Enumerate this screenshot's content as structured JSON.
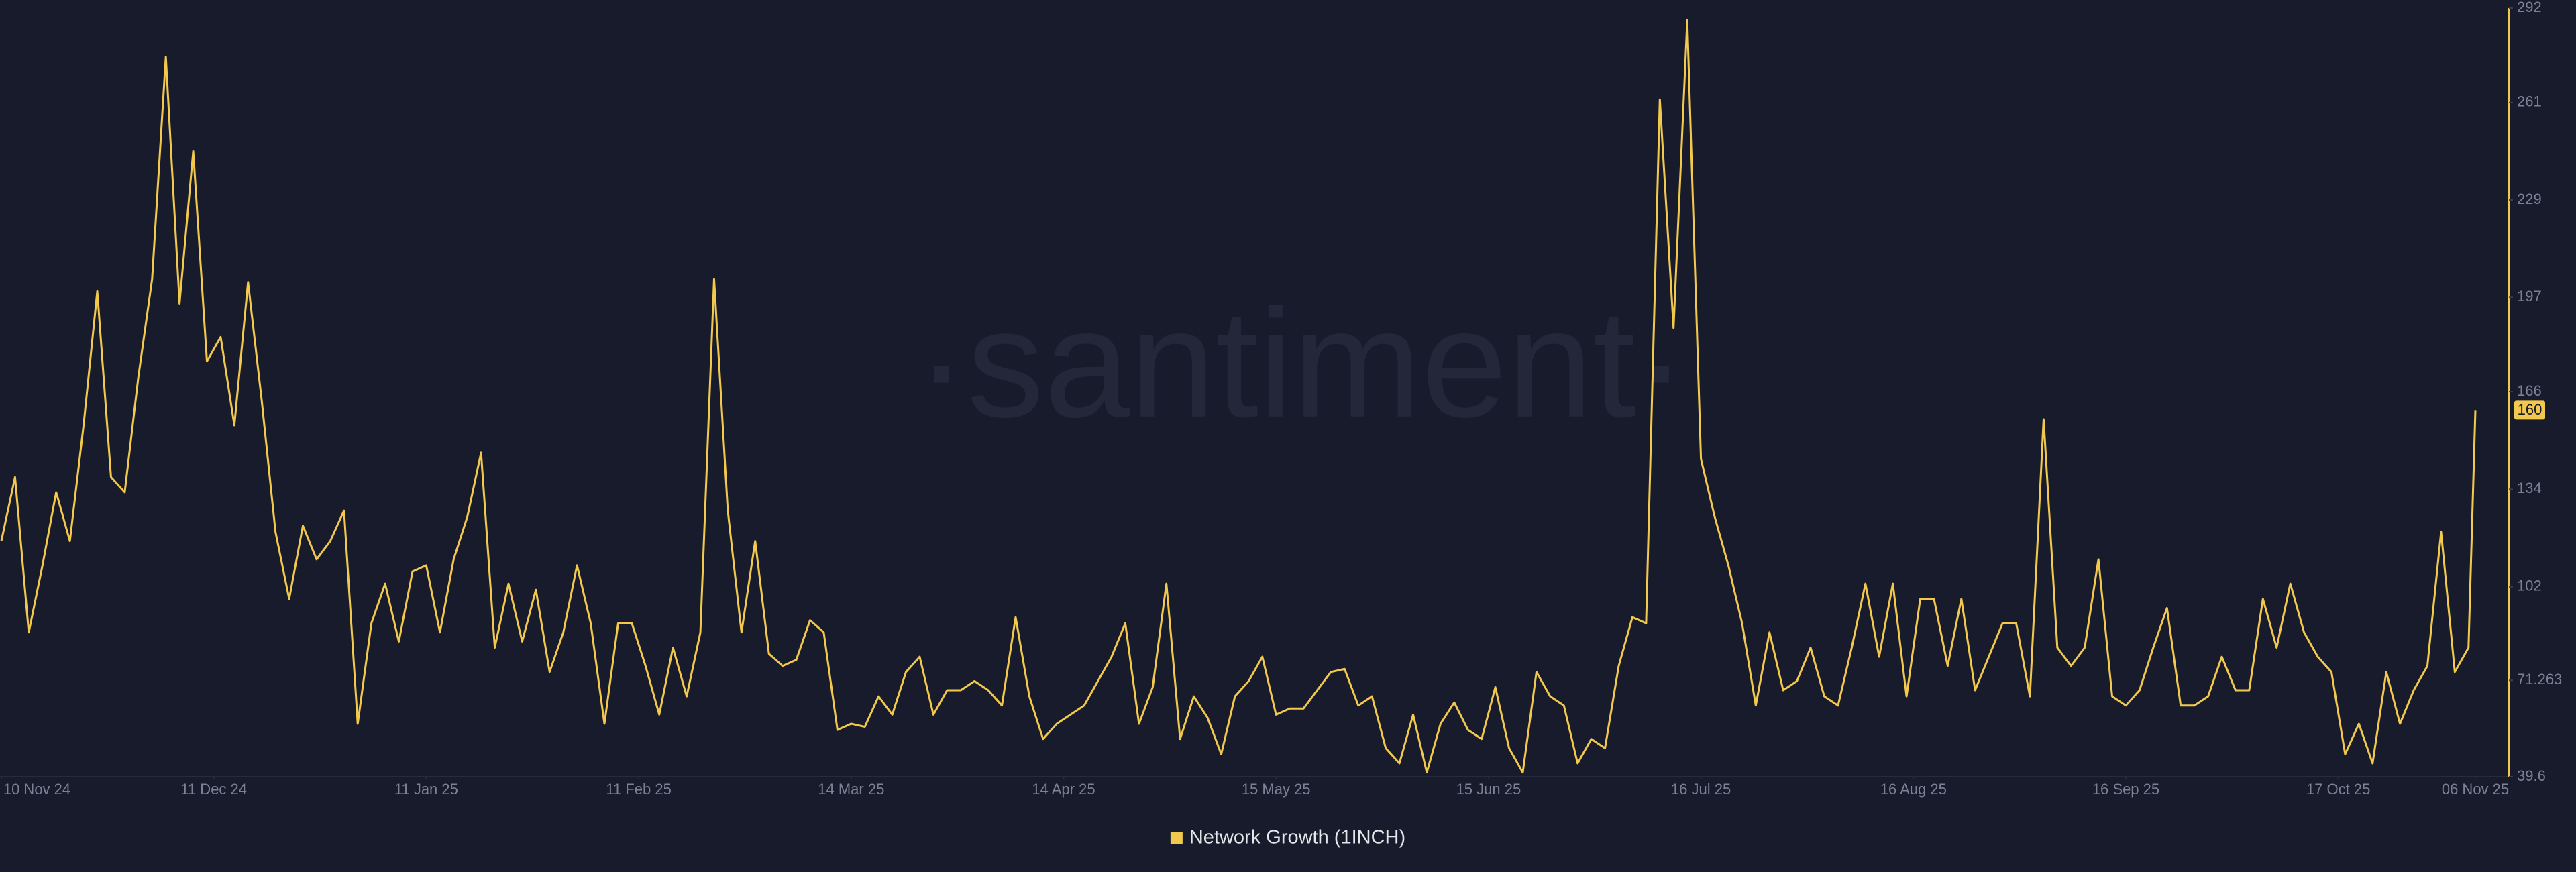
{
  "chart_data": {
    "type": "line",
    "watermark": "·santiment·",
    "x": [
      "10 Nov 24",
      "12 Nov 24",
      "14 Nov 24",
      "16 Nov 24",
      "18 Nov 24",
      "20 Nov 24",
      "22 Nov 24",
      "24 Nov 24",
      "26 Nov 24",
      "28 Nov 24",
      "30 Nov 24",
      "02 Dec 24",
      "04 Dec 24",
      "06 Dec 24",
      "08 Dec 24",
      "10 Dec 24",
      "12 Dec 24",
      "14 Dec 24",
      "16 Dec 24",
      "18 Dec 24",
      "20 Dec 24",
      "22 Dec 24",
      "24 Dec 24",
      "26 Dec 24",
      "28 Dec 24",
      "30 Dec 24",
      "01 Jan 25",
      "03 Jan 25",
      "05 Jan 25",
      "07 Jan 25",
      "09 Jan 25",
      "11 Jan 25",
      "13 Jan 25",
      "15 Jan 25",
      "17 Jan 25",
      "19 Jan 25",
      "21 Jan 25",
      "23 Jan 25",
      "25 Jan 25",
      "27 Jan 25",
      "29 Jan 25",
      "31 Jan 25",
      "02 Feb 25",
      "04 Feb 25",
      "06 Feb 25",
      "08 Feb 25",
      "10 Feb 25",
      "12 Feb 25",
      "14 Feb 25",
      "16 Feb 25",
      "18 Feb 25",
      "20 Feb 25",
      "22 Feb 25",
      "24 Feb 25",
      "26 Feb 25",
      "28 Feb 25",
      "02 Mar 25",
      "04 Mar 25",
      "06 Mar 25",
      "08 Mar 25",
      "10 Mar 25",
      "12 Mar 25",
      "14 Mar 25",
      "16 Mar 25",
      "18 Mar 25",
      "20 Mar 25",
      "22 Mar 25",
      "24 Mar 25",
      "26 Mar 25",
      "28 Mar 25",
      "30 Mar 25",
      "01 Apr 25",
      "03 Apr 25",
      "05 Apr 25",
      "07 Apr 25",
      "09 Apr 25",
      "11 Apr 25",
      "13 Apr 25",
      "15 Apr 25",
      "17 Apr 25",
      "19 Apr 25",
      "21 Apr 25",
      "23 Apr 25",
      "25 Apr 25",
      "27 Apr 25",
      "29 Apr 25",
      "01 May 25",
      "03 May 25",
      "05 May 25",
      "07 May 25",
      "09 May 25",
      "11 May 25",
      "13 May 25",
      "15 May 25",
      "17 May 25",
      "19 May 25",
      "21 May 25",
      "23 May 25",
      "25 May 25",
      "27 May 25",
      "29 May 25",
      "31 May 25",
      "02 Jun 25",
      "04 Jun 25",
      "06 Jun 25",
      "08 Jun 25",
      "10 Jun 25",
      "12 Jun 25",
      "14 Jun 25",
      "16 Jun 25",
      "18 Jun 25",
      "20 Jun 25",
      "22 Jun 25",
      "24 Jun 25",
      "26 Jun 25",
      "28 Jun 25",
      "30 Jun 25",
      "02 Jul 25",
      "04 Jul 25",
      "06 Jul 25",
      "08 Jul 25",
      "10 Jul 25",
      "12 Jul 25",
      "14 Jul 25",
      "16 Jul 25",
      "18 Jul 25",
      "20 Jul 25",
      "22 Jul 25",
      "24 Jul 25",
      "26 Jul 25",
      "28 Jul 25",
      "30 Jul 25",
      "01 Aug 25",
      "03 Aug 25",
      "05 Aug 25",
      "07 Aug 25",
      "09 Aug 25",
      "11 Aug 25",
      "13 Aug 25",
      "15 Aug 25",
      "17 Aug 25",
      "19 Aug 25",
      "21 Aug 25",
      "23 Aug 25",
      "25 Aug 25",
      "27 Aug 25",
      "29 Aug 25",
      "31 Aug 25",
      "02 Sep 25",
      "04 Sep 25",
      "06 Sep 25",
      "08 Sep 25",
      "10 Sep 25",
      "12 Sep 25",
      "14 Sep 25",
      "16 Sep 25",
      "18 Sep 25",
      "20 Sep 25",
      "22 Sep 25",
      "24 Sep 25",
      "26 Sep 25",
      "28 Sep 25",
      "30 Sep 25",
      "02 Oct 25",
      "04 Oct 25",
      "06 Oct 25",
      "08 Oct 25",
      "10 Oct 25",
      "12 Oct 25",
      "14 Oct 25",
      "16 Oct 25",
      "18 Oct 25",
      "20 Oct 25",
      "22 Oct 25",
      "24 Oct 25",
      "26 Oct 25",
      "28 Oct 25",
      "30 Oct 25",
      "01 Nov 25",
      "03 Nov 25",
      "05 Nov 25",
      "06 Nov 25"
    ],
    "series": [
      {
        "name": "Network Growth (1INCH)",
        "color": "#f2c94c",
        "values": [
          117,
          138,
          87,
          109,
          133,
          117,
          155,
          199,
          138,
          133,
          171,
          203,
          276,
          195,
          245,
          176,
          184,
          155,
          202,
          163,
          120,
          98,
          122,
          111,
          117,
          127,
          57,
          90,
          103,
          84,
          107,
          109,
          87,
          111,
          125,
          146,
          82,
          103,
          84,
          101,
          74,
          87,
          109,
          90,
          57,
          90,
          90,
          76,
          60,
          82,
          66,
          87,
          203,
          127,
          87,
          117,
          80,
          76,
          78,
          91,
          87,
          55,
          57,
          56,
          66,
          60,
          74,
          79,
          60,
          68,
          68,
          71,
          68,
          63,
          92,
          66,
          52,
          57,
          60,
          63,
          71,
          79,
          90,
          57,
          69,
          103,
          52,
          66,
          59,
          47,
          66,
          71,
          79,
          60,
          62,
          62,
          68,
          74,
          75,
          63,
          66,
          49,
          44,
          60,
          41,
          57,
          64,
          55,
          52,
          69,
          49,
          41,
          74,
          66,
          63,
          44,
          52,
          49,
          76,
          92,
          90,
          262,
          187,
          288,
          144,
          125,
          109,
          90,
          63,
          87,
          68,
          71,
          82,
          66,
          63,
          82,
          103,
          79,
          103,
          66,
          98,
          98,
          76,
          98,
          68,
          79,
          90,
          90,
          66,
          157,
          82,
          76,
          82,
          111,
          66,
          63,
          68,
          82,
          95,
          63,
          63,
          66,
          79,
          68,
          68,
          98,
          82,
          103,
          87,
          79,
          74,
          47,
          57,
          44,
          74,
          57,
          68,
          76,
          120,
          74,
          82,
          160
        ]
      }
    ],
    "xlim": [
      "10 Nov 24",
      "06 Nov 25"
    ],
    "xticks": [
      "10 Nov 24",
      "11 Dec 24",
      "11 Jan 25",
      "11 Feb 25",
      "14 Mar 25",
      "14 Apr 25",
      "15 May 25",
      "15 Jun 25",
      "16 Jul 25",
      "16 Aug 25",
      "16 Sep 25",
      "17 Oct 25",
      "06 Nov 25"
    ],
    "ylim": [
      39.6,
      292
    ],
    "yticks": [
      39.6,
      71.263,
      102,
      134,
      166,
      197,
      229,
      261,
      292
    ],
    "grid": false
  }
}
